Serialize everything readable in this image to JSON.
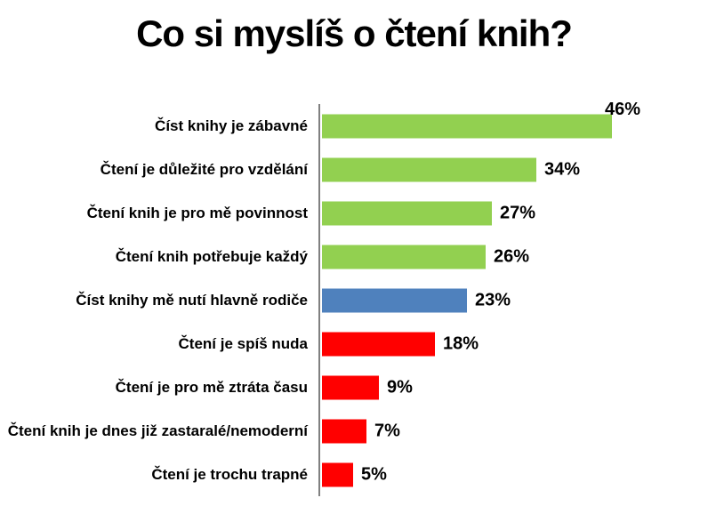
{
  "page": {
    "background": "#FFFFFF"
  },
  "title": "Co si myslíš o čtení knih?",
  "chart_data": {
    "type": "bar",
    "orientation": "horizontal",
    "title": "Co si myslíš o čtení knih?",
    "categories": [
      "Číst knihy je zábavné",
      "Čtení je důležité pro vzdělání",
      "Čtení knih je pro mě povinnost",
      "Čtení knih potřebuje každý",
      "Číst knihy mě nutí hlavně rodiče",
      "Čtení je spíš nuda",
      "Čtení je pro mě ztráta času",
      "Čtení knih je dnes již zastaralé/nemoderní",
      "Čtení je trochu trapné"
    ],
    "values": [
      46,
      34,
      27,
      26,
      23,
      18,
      9,
      7,
      5
    ],
    "value_labels": [
      "46%",
      "34%",
      "27%",
      "26%",
      "23%",
      "18%",
      "9%",
      "7%",
      "5%"
    ],
    "bar_colors": [
      "#92D050",
      "#92D050",
      "#92D050",
      "#92D050",
      "#4F81BD",
      "#FF0000",
      "#FF0000",
      "#FF0000",
      "#FF0000"
    ],
    "label_above_bar": [
      true,
      false,
      false,
      false,
      false,
      false,
      false,
      false,
      false
    ],
    "xlim": [
      0,
      50
    ],
    "xlabel": "",
    "ylabel": "",
    "grid": false,
    "legend": false,
    "axis_color": "#808080",
    "text_color": "#000000"
  }
}
